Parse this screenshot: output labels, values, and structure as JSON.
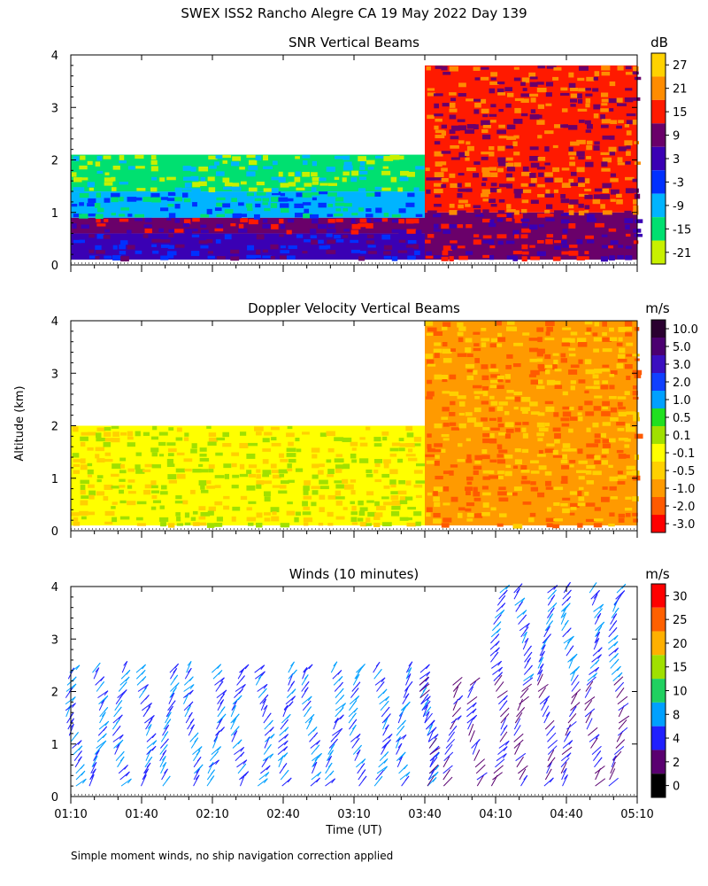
{
  "title": "SWEX ISS2 Rancho Alegre CA  19 May 2022 Day 139",
  "ylabel": "Altitude (km)",
  "xlabel": "Time (UT)",
  "footnote": "Simple moment winds, no ship navigation correction applied",
  "chart_data": [
    {
      "type": "heatmap",
      "title": "SNR Vertical Beams",
      "unit": "dB",
      "x_ticks": [
        "01:10",
        "01:40",
        "02:10",
        "02:40",
        "03:10",
        "03:40",
        "04:10",
        "04:40",
        "05:10"
      ],
      "xlim": [
        "01:10",
        "05:10"
      ],
      "y_ticks": [
        "0",
        "1",
        "2",
        "3",
        "4"
      ],
      "ylim": [
        0,
        4
      ],
      "colorbar_labels": [
        "27",
        "21",
        "15",
        "9",
        "3",
        "-3",
        "-9",
        "-15",
        "-21"
      ],
      "colorbar_colors": [
        "#ffd200",
        "#ff8c00",
        "#ff1a00",
        "#6a006a",
        "#3a00b4",
        "#0030ff",
        "#00b4ff",
        "#00e070",
        "#c8f000"
      ],
      "approx_field": [
        {
          "time_range": [
            "01:10",
            "03:40"
          ],
          "altitude_km": [
            0.1,
            0.6
          ],
          "snr_db": 2
        },
        {
          "time_range": [
            "01:10",
            "03:40"
          ],
          "altitude_km": [
            0.6,
            0.9
          ],
          "snr_db": 9
        },
        {
          "time_range": [
            "01:10",
            "03:40"
          ],
          "altitude_km": [
            0.9,
            1.4
          ],
          "snr_db": -8
        },
        {
          "time_range": [
            "01:10",
            "03:40"
          ],
          "altitude_km": [
            1.4,
            2.1
          ],
          "snr_db": -16
        },
        {
          "time_range": [
            "03:40",
            "05:10"
          ],
          "altitude_km": [
            0.1,
            1.0
          ],
          "snr_db": 9
        },
        {
          "time_range": [
            "03:40",
            "05:10"
          ],
          "altitude_km": [
            1.0,
            3.8
          ],
          "snr_db": 12
        }
      ]
    },
    {
      "type": "heatmap",
      "title": "Doppler Velocity Vertical Beams",
      "unit": "m/s",
      "x_ticks": [
        "01:10",
        "01:40",
        "02:10",
        "02:40",
        "03:10",
        "03:40",
        "04:10",
        "04:40",
        "05:10"
      ],
      "xlim": [
        "01:10",
        "05:10"
      ],
      "y_ticks": [
        "0",
        "1",
        "2",
        "3",
        "4"
      ],
      "ylim": [
        0,
        4
      ],
      "colorbar_labels": [
        "10.0",
        "5.0",
        "3.0",
        "2.0",
        "1.0",
        "0.5",
        "0.1",
        "-0.1",
        "-0.5",
        "-1.0",
        "-2.0",
        "-3.0"
      ],
      "colorbar_colors": [
        "#2a0030",
        "#4b0070",
        "#3a10c0",
        "#1040ff",
        "#00a0ff",
        "#20e020",
        "#a0e000",
        "#ffff00",
        "#ffd000",
        "#ff9a00",
        "#ff5a00",
        "#ff0000"
      ],
      "approx_field": [
        {
          "time_range": [
            "01:10",
            "03:40"
          ],
          "altitude_km": [
            0.1,
            2.0
          ],
          "velocity_ms": -0.2
        },
        {
          "time_range": [
            "03:40",
            "05:10"
          ],
          "altitude_km": [
            0.1,
            4.0
          ],
          "velocity_ms": -1.0
        }
      ]
    },
    {
      "type": "wind_barbs",
      "title": "Winds (10 minutes)",
      "unit": "m/s",
      "x_ticks": [
        "01:10",
        "01:40",
        "02:10",
        "02:40",
        "03:10",
        "03:40",
        "04:10",
        "04:40",
        "05:10"
      ],
      "xlim": [
        "01:10",
        "05:10"
      ],
      "y_ticks": [
        "0",
        "1",
        "2",
        "3",
        "4"
      ],
      "ylim": [
        0,
        4
      ],
      "colorbar_labels": [
        "30",
        "25",
        "20",
        "15",
        "10",
        "8",
        "4",
        "2",
        "0"
      ],
      "colorbar_colors": [
        "#ff0000",
        "#ff6000",
        "#ffb000",
        "#a0e000",
        "#20d060",
        "#00a0ff",
        "#2020ff",
        "#5a0070",
        "#000000"
      ],
      "profile_times": [
        "01:10",
        "01:20",
        "01:30",
        "01:40",
        "01:50",
        "02:00",
        "02:10",
        "02:20",
        "02:30",
        "02:40",
        "02:50",
        "03:00",
        "03:10",
        "03:20",
        "03:30",
        "03:40",
        "03:50",
        "04:00",
        "04:10",
        "04:20",
        "04:30",
        "04:40",
        "04:50",
        "05:00",
        "05:10"
      ],
      "approx_profiles": [
        {
          "time_range": [
            "01:10",
            "03:40"
          ],
          "altitude_km": [
            0.2,
            2.4
          ],
          "speed_ms": 6
        },
        {
          "time_range": [
            "03:40",
            "05:10"
          ],
          "altitude_km": [
            0.2,
            2.2
          ],
          "speed_ms": 3
        },
        {
          "time_range": [
            "04:10",
            "05:10"
          ],
          "altitude_km": [
            2.2,
            4.0
          ],
          "speed_ms": 6
        }
      ]
    }
  ]
}
